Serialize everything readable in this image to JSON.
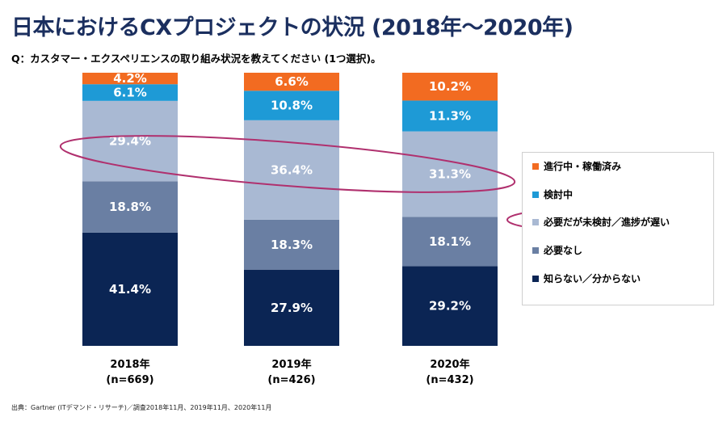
{
  "title": "日本におけるCXプロジェクトの状況 (2018年～2020年)",
  "question": "Q：カスタマー・エクスペリエンスの取り組み状況を教えてください (1つ選択)。",
  "source": "出典：Gartner (ITデマンド・リサーチ)／調査2018年11月、2019年11月、2020年11月",
  "chart_data": {
    "type": "bar",
    "stacked": true,
    "percent_stacked": true,
    "categories": [
      {
        "year": "2018年",
        "n": "(n=669)"
      },
      {
        "year": "2019年",
        "n": "(n=426)"
      },
      {
        "year": "2020年",
        "n": "(n=432)"
      }
    ],
    "series": [
      {
        "name": "知らない／分からない",
        "color": "#0b2554",
        "values": [
          41.4,
          27.9,
          29.2
        ],
        "labels": [
          "41.4%",
          "27.9%",
          "29.2%"
        ]
      },
      {
        "name": "必要なし",
        "color": "#6a7fa3",
        "values": [
          18.8,
          18.3,
          18.1
        ],
        "labels": [
          "18.8%",
          "18.3%",
          "18.1%"
        ]
      },
      {
        "name": "必要だが未検討／進捗が遅い",
        "color": "#a9b9d3",
        "values": [
          29.4,
          36.4,
          31.3
        ],
        "labels": [
          "29.4%",
          "36.4%",
          "31.3%"
        ]
      },
      {
        "name": "検討中",
        "color": "#1e9ad6",
        "values": [
          6.1,
          10.8,
          11.3
        ],
        "labels": [
          "6.1%",
          "10.8%",
          "11.3%"
        ]
      },
      {
        "name": "進行中・稼働済み",
        "color": "#f26b21",
        "values": [
          4.2,
          6.6,
          10.2
        ],
        "labels": [
          "4.2%",
          "6.6%",
          "10.2%"
        ]
      }
    ],
    "legend_order": [
      "進行中・稼働済み",
      "検討中",
      "必要だが未検討／進捗が遅い",
      "必要なし",
      "知らない／分からない"
    ],
    "legend_position": "right",
    "highlight_color": "#b0306e",
    "ylim": [
      0,
      100
    ]
  }
}
